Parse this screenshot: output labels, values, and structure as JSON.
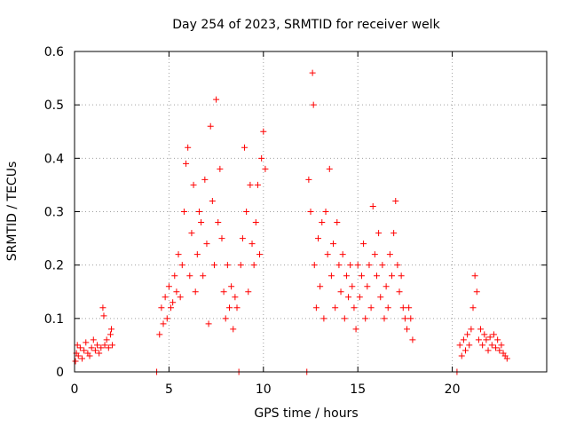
{
  "chart_data": {
    "type": "scatter",
    "title": "Day 254 of 2023, SRMTID for receiver welk",
    "xlabel": "GPS time / hours",
    "ylabel": "SRMTID / TECUs",
    "xlim": [
      0,
      25
    ],
    "ylim": [
      0,
      0.6
    ],
    "grid": true,
    "marker": "+",
    "color": "#ff0000",
    "x_ticks": [
      0,
      5,
      10,
      15,
      20
    ],
    "x_tick_labels": [
      "0",
      "5",
      "10",
      "15",
      "20"
    ],
    "y_ticks": [
      0,
      0.1,
      0.2,
      0.3,
      0.4,
      0.5,
      0.6
    ],
    "y_tick_labels": [
      "0",
      "0.1",
      "0.2",
      "0.3",
      "0.4",
      "0.5",
      "0.6"
    ],
    "series": [
      {
        "name": "SRMTID",
        "points": [
          [
            0.05,
            0.02
          ],
          [
            0.1,
            0.035
          ],
          [
            0.15,
            0.05
          ],
          [
            0.2,
            0.03
          ],
          [
            0.3,
            0.045
          ],
          [
            0.4,
            0.025
          ],
          [
            0.5,
            0.04
          ],
          [
            0.6,
            0.055
          ],
          [
            0.7,
            0.035
          ],
          [
            0.8,
            0.03
          ],
          [
            0.9,
            0.045
          ],
          [
            1.0,
            0.06
          ],
          [
            1.1,
            0.04
          ],
          [
            1.2,
            0.05
          ],
          [
            1.3,
            0.035
          ],
          [
            1.4,
            0.045
          ],
          [
            1.5,
            0.12
          ],
          [
            1.55,
            0.105
          ],
          [
            1.6,
            0.05
          ],
          [
            1.7,
            0.06
          ],
          [
            1.8,
            0.045
          ],
          [
            1.9,
            0.07
          ],
          [
            1.95,
            0.08
          ],
          [
            2.0,
            0.05
          ],
          [
            4.35,
            0.0
          ],
          [
            8.7,
            0.0
          ],
          [
            12.3,
            0.0
          ],
          [
            20.25,
            0.0
          ],
          [
            4.5,
            0.07
          ],
          [
            4.6,
            0.12
          ],
          [
            4.7,
            0.09
          ],
          [
            4.8,
            0.14
          ],
          [
            4.9,
            0.1
          ],
          [
            5.0,
            0.16
          ],
          [
            5.1,
            0.12
          ],
          [
            5.2,
            0.13
          ],
          [
            5.3,
            0.18
          ],
          [
            5.4,
            0.15
          ],
          [
            5.5,
            0.22
          ],
          [
            5.6,
            0.14
          ],
          [
            5.7,
            0.2
          ],
          [
            5.8,
            0.3
          ],
          [
            5.9,
            0.39
          ],
          [
            6.0,
            0.42
          ],
          [
            6.1,
            0.18
          ],
          [
            6.2,
            0.26
          ],
          [
            6.3,
            0.35
          ],
          [
            6.4,
            0.15
          ],
          [
            6.5,
            0.22
          ],
          [
            6.6,
            0.3
          ],
          [
            6.7,
            0.28
          ],
          [
            6.8,
            0.18
          ],
          [
            6.9,
            0.36
          ],
          [
            7.0,
            0.24
          ],
          [
            7.1,
            0.09
          ],
          [
            7.2,
            0.46
          ],
          [
            7.3,
            0.32
          ],
          [
            7.4,
            0.2
          ],
          [
            7.5,
            0.51
          ],
          [
            7.6,
            0.28
          ],
          [
            7.7,
            0.38
          ],
          [
            7.8,
            0.25
          ],
          [
            7.9,
            0.15
          ],
          [
            8.0,
            0.1
          ],
          [
            8.1,
            0.2
          ],
          [
            8.2,
            0.12
          ],
          [
            8.3,
            0.16
          ],
          [
            8.4,
            0.08
          ],
          [
            8.5,
            0.14
          ],
          [
            8.6,
            0.12
          ],
          [
            8.8,
            0.2
          ],
          [
            8.9,
            0.25
          ],
          [
            9.0,
            0.42
          ],
          [
            9.1,
            0.3
          ],
          [
            9.2,
            0.15
          ],
          [
            9.3,
            0.35
          ],
          [
            9.4,
            0.24
          ],
          [
            9.5,
            0.2
          ],
          [
            9.6,
            0.28
          ],
          [
            9.7,
            0.35
          ],
          [
            9.8,
            0.22
          ],
          [
            9.9,
            0.4
          ],
          [
            10.0,
            0.45
          ],
          [
            10.1,
            0.38
          ],
          [
            12.4,
            0.36
          ],
          [
            12.5,
            0.3
          ],
          [
            12.6,
            0.56
          ],
          [
            12.65,
            0.5
          ],
          [
            12.7,
            0.2
          ],
          [
            12.8,
            0.12
          ],
          [
            12.9,
            0.25
          ],
          [
            13.0,
            0.16
          ],
          [
            13.1,
            0.28
          ],
          [
            13.2,
            0.1
          ],
          [
            13.3,
            0.3
          ],
          [
            13.4,
            0.22
          ],
          [
            13.5,
            0.38
          ],
          [
            13.6,
            0.18
          ],
          [
            13.7,
            0.24
          ],
          [
            13.8,
            0.12
          ],
          [
            13.9,
            0.28
          ],
          [
            14.0,
            0.2
          ],
          [
            14.1,
            0.15
          ],
          [
            14.2,
            0.22
          ],
          [
            14.3,
            0.1
          ],
          [
            14.4,
            0.18
          ],
          [
            14.5,
            0.14
          ],
          [
            14.6,
            0.2
          ],
          [
            14.7,
            0.16
          ],
          [
            14.8,
            0.12
          ],
          [
            14.9,
            0.08
          ],
          [
            15.0,
            0.2
          ],
          [
            15.1,
            0.14
          ],
          [
            15.2,
            0.18
          ],
          [
            15.3,
            0.24
          ],
          [
            15.4,
            0.1
          ],
          [
            15.5,
            0.16
          ],
          [
            15.6,
            0.2
          ],
          [
            15.7,
            0.12
          ],
          [
            15.8,
            0.31
          ],
          [
            15.9,
            0.22
          ],
          [
            16.0,
            0.18
          ],
          [
            16.1,
            0.26
          ],
          [
            16.2,
            0.14
          ],
          [
            16.3,
            0.2
          ],
          [
            16.4,
            0.1
          ],
          [
            16.5,
            0.16
          ],
          [
            16.6,
            0.12
          ],
          [
            16.7,
            0.22
          ],
          [
            16.8,
            0.18
          ],
          [
            16.9,
            0.26
          ],
          [
            17.0,
            0.32
          ],
          [
            17.1,
            0.2
          ],
          [
            17.2,
            0.15
          ],
          [
            17.3,
            0.18
          ],
          [
            17.4,
            0.12
          ],
          [
            17.5,
            0.1
          ],
          [
            17.6,
            0.08
          ],
          [
            17.7,
            0.12
          ],
          [
            17.8,
            0.1
          ],
          [
            17.9,
            0.06
          ],
          [
            20.4,
            0.05
          ],
          [
            20.5,
            0.03
          ],
          [
            20.6,
            0.06
          ],
          [
            20.7,
            0.04
          ],
          [
            20.8,
            0.07
          ],
          [
            20.9,
            0.05
          ],
          [
            21.0,
            0.08
          ],
          [
            21.1,
            0.12
          ],
          [
            21.2,
            0.18
          ],
          [
            21.3,
            0.15
          ],
          [
            21.4,
            0.06
          ],
          [
            21.5,
            0.08
          ],
          [
            21.6,
            0.05
          ],
          [
            21.7,
            0.07
          ],
          [
            21.8,
            0.06
          ],
          [
            21.9,
            0.04
          ],
          [
            22.0,
            0.065
          ],
          [
            22.1,
            0.05
          ],
          [
            22.2,
            0.07
          ],
          [
            22.3,
            0.045
          ],
          [
            22.4,
            0.06
          ],
          [
            22.5,
            0.04
          ],
          [
            22.6,
            0.05
          ],
          [
            22.7,
            0.035
          ],
          [
            22.8,
            0.03
          ],
          [
            22.9,
            0.025
          ]
        ]
      }
    ]
  }
}
